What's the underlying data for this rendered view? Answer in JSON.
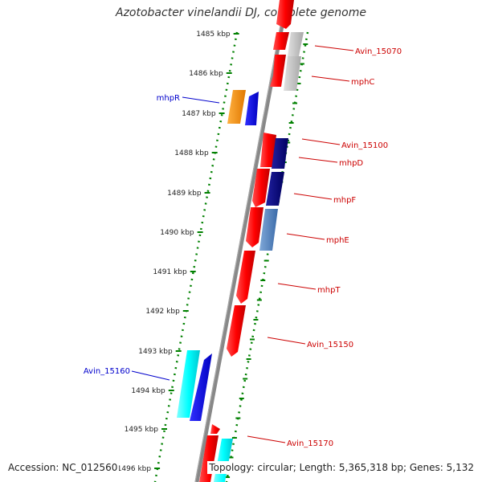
{
  "title": "Azotobacter vinelandii DJ, complete genome",
  "footer": {
    "accession": "Accession: NC_012560",
    "topology": "Topology: circular; Length: 5,365,318 bp; Genes: 5,132"
  },
  "colors": {
    "backbone": "#888888",
    "tick_ring": "#008000",
    "forward_label": "#cc0000",
    "reverse_label": "#0000cc"
  },
  "kbp_labels": [
    "1485 kbp",
    "1486 kbp",
    "1487 kbp",
    "1488 kbp",
    "1489 kbp",
    "1490 kbp",
    "1491 kbp",
    "1492 kbp",
    "1493 kbp",
    "1494 kbp",
    "1495 kbp",
    "1496 kbp"
  ],
  "gene_labels": [
    {
      "text": "Avin_15070",
      "strand": "forward"
    },
    {
      "text": "mphC",
      "strand": "forward"
    },
    {
      "text": "mhpR",
      "strand": "reverse"
    },
    {
      "text": "Avin_15100",
      "strand": "forward"
    },
    {
      "text": "mhpD",
      "strand": "forward"
    },
    {
      "text": "mhpF",
      "strand": "forward"
    },
    {
      "text": "mphE",
      "strand": "forward"
    },
    {
      "text": "mhpT",
      "strand": "forward"
    },
    {
      "text": "Avin_15150",
      "strand": "forward"
    },
    {
      "text": "Avin_15160",
      "strand": "reverse"
    },
    {
      "text": "Avin_15170",
      "strand": "forward"
    }
  ]
}
